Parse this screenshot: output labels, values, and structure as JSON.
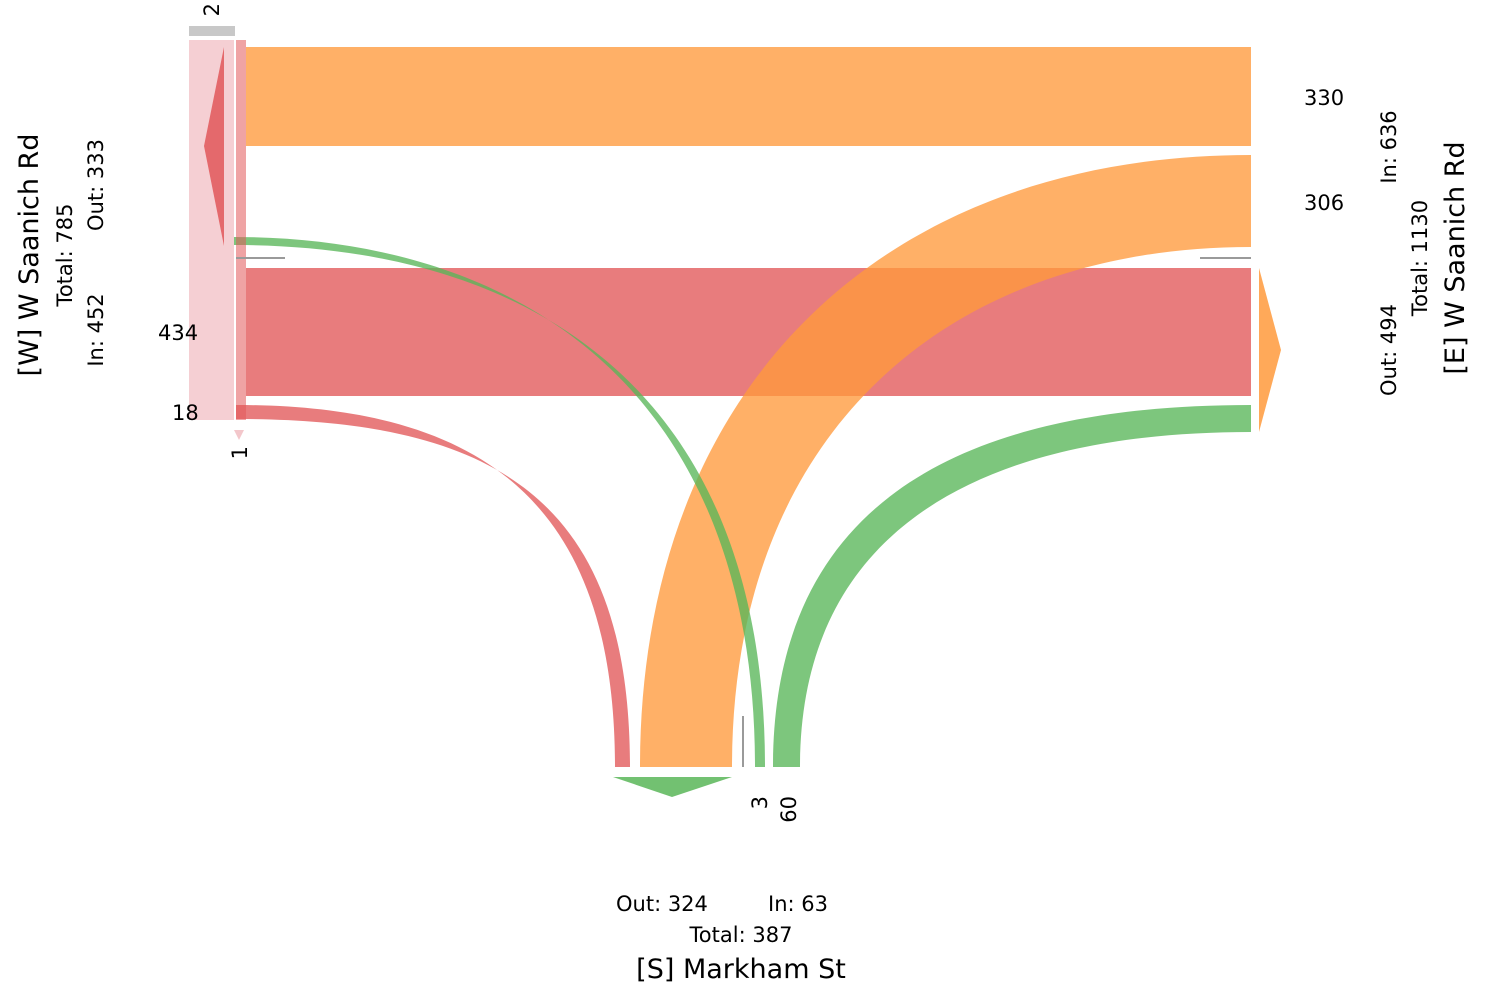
{
  "colors": {
    "west": "#e15759",
    "east": "#ff9a3c",
    "south": "#59b658",
    "west_light": "#f3c7cb"
  },
  "approaches": {
    "west": {
      "name": "[W] W Saanich Rd",
      "total": "Total: 785",
      "in": "In: 452",
      "out": "Out: 333"
    },
    "east": {
      "name": "[E] W Saanich Rd",
      "total": "Total: 1130",
      "in": "In: 636",
      "out": "Out: 494"
    },
    "south": {
      "name": "[S] Markham St",
      "total": "Total: 387",
      "in": "In: 63",
      "out": "Out: 324"
    }
  },
  "flows": [
    {
      "from": "east",
      "to": "west",
      "value": 330,
      "label": "330"
    },
    {
      "from": "east",
      "to": "south",
      "value": 306,
      "label": "306"
    },
    {
      "from": "west",
      "to": "east",
      "value": 434,
      "label": "434"
    },
    {
      "from": "west",
      "to": "south",
      "value": 18,
      "label": "18"
    },
    {
      "from": "south",
      "to": "west",
      "value": 3,
      "label": "3"
    },
    {
      "from": "south",
      "to": "east",
      "value": 60,
      "label": "60"
    },
    {
      "from": "west",
      "to": "west",
      "value": 1,
      "label": "1",
      "note": "u-turn"
    },
    {
      "from": "unknown",
      "to": "west",
      "value": 2,
      "label": "2"
    }
  ]
}
